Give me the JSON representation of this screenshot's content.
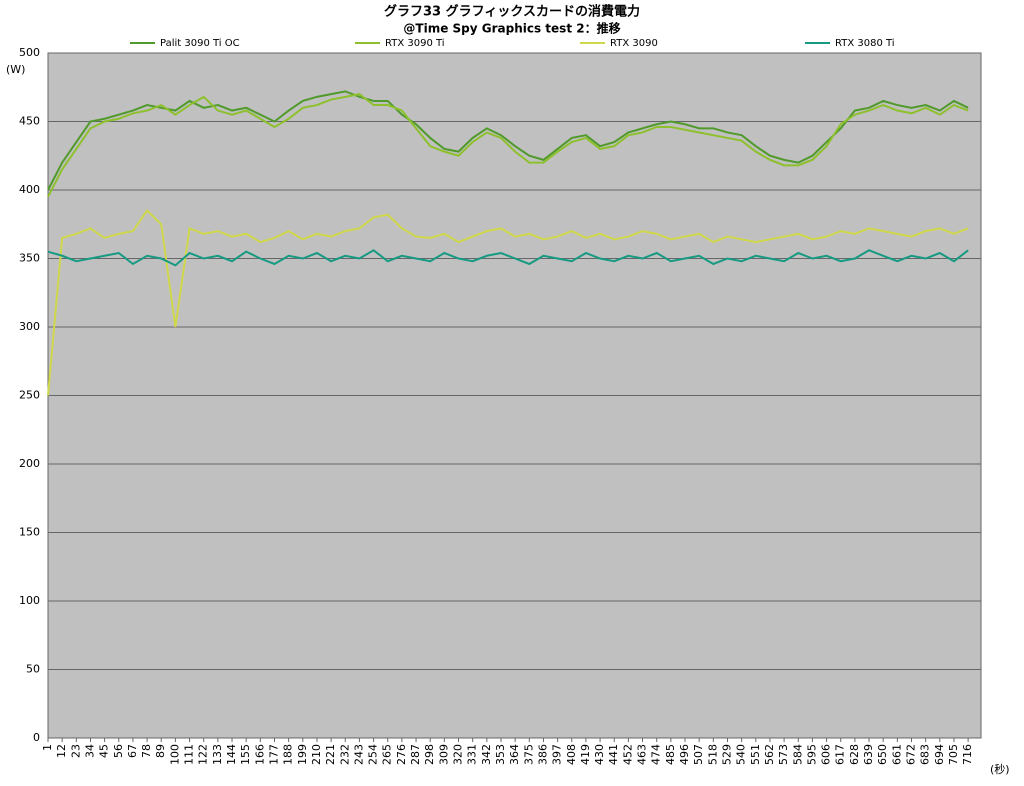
{
  "chart_data": {
    "type": "line",
    "title": "グラフ33 グラフィックスカードの消費電力",
    "subtitle": "@Time Spy Graphics test 2：推移",
    "y_label": "(W)",
    "x_label": "(秒)",
    "x": [
      1,
      12,
      23,
      34,
      45,
      56,
      67,
      78,
      89,
      100,
      111,
      122,
      133,
      144,
      155,
      166,
      177,
      188,
      199,
      210,
      221,
      232,
      243,
      254,
      265,
      276,
      287,
      298,
      309,
      320,
      331,
      342,
      353,
      364,
      375,
      386,
      397,
      408,
      419,
      430,
      441,
      452,
      463,
      474,
      485,
      496,
      507,
      518,
      529,
      540,
      551,
      562,
      573,
      584,
      595,
      606,
      617,
      628,
      639,
      650,
      661,
      672,
      683,
      694,
      705,
      716
    ],
    "xlim": [
      1,
      726
    ],
    "xticks": [
      1,
      12,
      23,
      34,
      45,
      56,
      67,
      78,
      89,
      100,
      111,
      122,
      133,
      144,
      155,
      166,
      177,
      188,
      199,
      210,
      221,
      232,
      243,
      254,
      265,
      276,
      287,
      298,
      309,
      320,
      331,
      342,
      353,
      364,
      375,
      386,
      397,
      408,
      419,
      430,
      441,
      452,
      463,
      474,
      485,
      496,
      507,
      518,
      529,
      540,
      551,
      562,
      573,
      584,
      595,
      606,
      617,
      628,
      639,
      650,
      661,
      672,
      683,
      694,
      705,
      716
    ],
    "ylim": [
      0,
      500
    ],
    "yticks": [
      0,
      50,
      100,
      150,
      200,
      250,
      300,
      350,
      400,
      450,
      500
    ],
    "grid": true,
    "series": [
      {
        "name": "Palit 3090 Ti OC",
        "color": "#4f9a2a",
        "values": [
          400,
          420,
          435,
          450,
          452,
          455,
          458,
          462,
          460,
          458,
          465,
          460,
          462,
          458,
          460,
          455,
          450,
          458,
          465,
          468,
          470,
          472,
          468,
          465,
          465,
          455,
          448,
          438,
          430,
          428,
          438,
          445,
          440,
          432,
          425,
          422,
          430,
          438,
          440,
          432,
          435,
          442,
          445,
          448,
          450,
          448,
          445,
          445,
          442,
          440,
          432,
          425,
          422,
          420,
          425,
          435,
          445,
          458,
          460,
          465,
          462,
          460,
          462,
          458,
          465,
          460
        ]
      },
      {
        "name": "RTX 3090 Ti",
        "color": "#8dc02c",
        "values": [
          395,
          415,
          430,
          445,
          450,
          452,
          456,
          458,
          462,
          455,
          462,
          468,
          458,
          455,
          458,
          452,
          446,
          452,
          460,
          462,
          466,
          468,
          470,
          462,
          462,
          458,
          445,
          432,
          428,
          425,
          435,
          442,
          438,
          428,
          420,
          420,
          428,
          435,
          438,
          430,
          432,
          440,
          442,
          446,
          446,
          444,
          442,
          440,
          438,
          436,
          428,
          422,
          418,
          418,
          422,
          432,
          448,
          455,
          458,
          462,
          458,
          456,
          460,
          455,
          462,
          458
        ]
      },
      {
        "name": "RTX 3090",
        "color": "#cfd84a",
        "values": [
          250,
          365,
          368,
          372,
          365,
          368,
          370,
          385,
          375,
          300,
          372,
          368,
          370,
          366,
          368,
          362,
          365,
          370,
          364,
          368,
          366,
          370,
          372,
          380,
          382,
          372,
          366,
          365,
          368,
          362,
          366,
          370,
          372,
          366,
          368,
          364,
          366,
          370,
          365,
          368,
          364,
          366,
          370,
          368,
          364,
          366,
          368,
          362,
          366,
          364,
          362,
          364,
          366,
          368,
          364,
          366,
          370,
          368,
          372,
          370,
          368,
          366,
          370,
          372,
          368,
          372
        ]
      },
      {
        "name": "RTX 3080 Ti",
        "color": "#169a82",
        "values": [
          355,
          352,
          348,
          350,
          352,
          354,
          346,
          352,
          350,
          345,
          354,
          350,
          352,
          348,
          355,
          350,
          346,
          352,
          350,
          354,
          348,
          352,
          350,
          356,
          348,
          352,
          350,
          348,
          354,
          350,
          348,
          352,
          354,
          350,
          346,
          352,
          350,
          348,
          354,
          350,
          348,
          352,
          350,
          354,
          348,
          350,
          352,
          346,
          350,
          348,
          352,
          350,
          348,
          354,
          350,
          352,
          348,
          350,
          356,
          352,
          348,
          352,
          350,
          354,
          348,
          356
        ]
      }
    ]
  }
}
